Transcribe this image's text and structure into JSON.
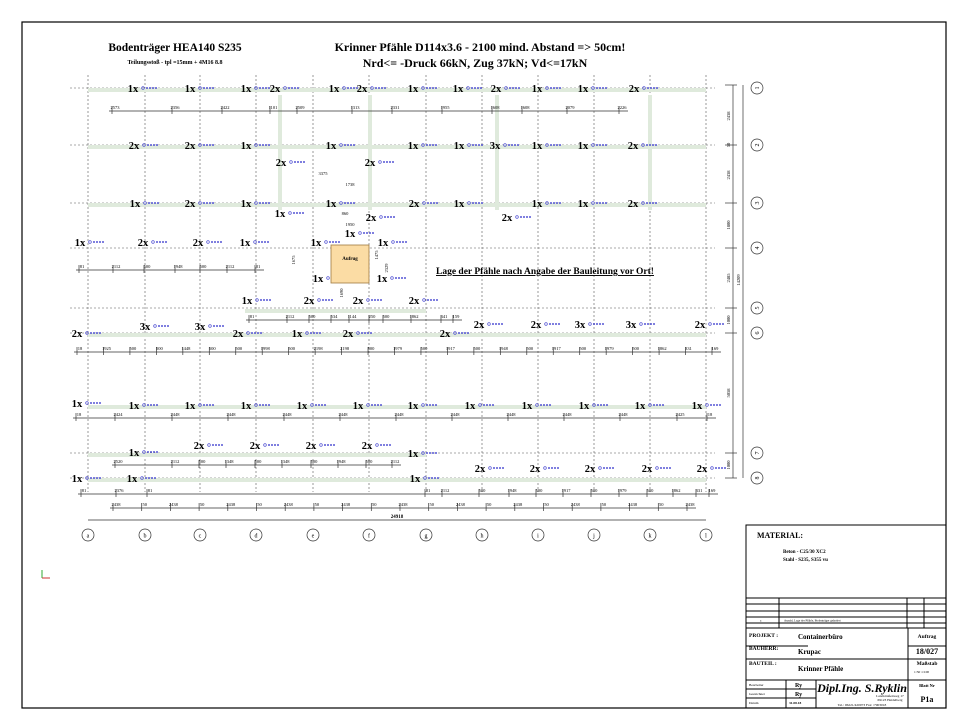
{
  "header": {
    "beam_title": "Bodenträger HEA140 S235",
    "beam_subtitle": "Teilungsstoß - tpl =15mm + 4M16 8.8",
    "pile_title": "Krinner Pfähle D114x3.6 - 2100 mind. Abstand => 50cm!",
    "pile_loads": "Nrd<= -Druck 66kN, Zug 37kN; Vd<=17kN"
  },
  "note": "Lage der Pfähle nach Angabe der Bauleitung vor Ort!",
  "box_label": "Aufrug",
  "colors": {
    "pile_label": "#3333cc",
    "box_fill": "#fbdca4",
    "beam_highlight": "#dfeadc",
    "axis_icon": "#33aa33"
  },
  "grid": {
    "columns": [
      "a",
      "b",
      "c",
      "d",
      "e",
      "f",
      "g",
      "h",
      "i",
      "j",
      "k",
      "l"
    ],
    "rows": [
      "1",
      "2",
      "3",
      "4",
      "5",
      "6",
      "7",
      "8"
    ]
  },
  "pile_markers": {
    "row1": [
      "1x",
      "1x",
      "1x",
      "2x",
      "1x",
      "2x",
      "1x",
      "1x",
      "2x",
      "1x",
      "1x",
      "2x"
    ],
    "row2": [
      "2x",
      "2x",
      "1x",
      "2x",
      "1x",
      "2x",
      "1x",
      "1x",
      "3x",
      "1x",
      "1x",
      "2x"
    ],
    "row3": [
      "1x",
      "2x",
      "1x",
      "1x",
      "1x",
      "2x",
      "2x",
      "1x",
      "2x",
      "1x",
      "1x",
      "2x"
    ],
    "row4": [
      "1x",
      "2x",
      "2x",
      "1x",
      "1x",
      "1x",
      "1x",
      "1x",
      "1x"
    ],
    "row5": [
      "1x",
      "2x",
      "2x",
      "2x"
    ],
    "row6": [
      "2x",
      "3x",
      "3x",
      "2x",
      "1x",
      "2x",
      "2x",
      "2x",
      "2x",
      "3x",
      "3x",
      "2x"
    ],
    "row7": [
      "1x",
      "1x",
      "1x",
      "1x",
      "1x",
      "1x",
      "1x",
      "1x",
      "1x",
      "1x",
      "1x",
      "1x"
    ],
    "row8a": [
      "1x",
      "2x",
      "2x",
      "2x",
      "2x",
      "1x"
    ],
    "row8b": [
      "1x",
      "1x",
      "1x",
      "2x",
      "2x",
      "2x",
      "2x",
      "2x"
    ]
  },
  "dimensions": {
    "top_row": [
      "2573",
      "2356",
      "2422",
      "1101",
      "2509",
      "1313",
      "2331",
      "1955",
      "1608",
      "1608",
      "2079",
      "2226"
    ],
    "row4": [
      "81",
      "2112",
      "500",
      "1948",
      "500",
      "2112",
      "81"
    ],
    "row5": [
      "81",
      "2112",
      "500",
      "534",
      "1144",
      "250",
      "500",
      "1862",
      "341",
      "159"
    ],
    "row6": [
      "18",
      "1925",
      "500",
      "500",
      "1448",
      "500",
      "500",
      "1998",
      "500",
      "2198",
      "2198",
      "500",
      "1979",
      "500",
      "1917",
      "500",
      "1948",
      "500",
      "1917",
      "500",
      "1979",
      "500",
      "1862",
      "331",
      "169"
    ],
    "row7": [
      "18",
      "2424",
      "2448",
      "2448",
      "2448",
      "2448",
      "2448",
      "2448",
      "2448",
      "2448",
      "2448",
      "2425",
      "18"
    ],
    "row8a": [
      "2520",
      "2112",
      "500",
      "1348",
      "500",
      "1348",
      "500",
      "1948",
      "500",
      "2112"
    ],
    "row8b": [
      "81",
      "2376",
      "81",
      "81",
      "2112",
      "500",
      "1948",
      "500",
      "1917",
      "500",
      "1979",
      "500",
      "1862",
      "331",
      "169"
    ],
    "axis_spacing": [
      "2438",
      "50",
      "2438",
      "50",
      "2438",
      "50",
      "2438",
      "50",
      "2438",
      "50",
      "2438",
      "50",
      "2438",
      "50",
      "2438",
      "50",
      "2438",
      "50",
      "2438",
      "50",
      "2438"
    ],
    "total_width": "24918",
    "box": [
      "3375",
      "1738",
      "860",
      "1950",
      "1675",
      "1475",
      "2329",
      "1690"
    ],
    "right_side": [
      "2438",
      "50",
      "2438",
      "1800",
      "2485",
      "1000",
      "5058",
      "1000"
    ],
    "total_height": "14209"
  },
  "title_block": {
    "material_heading": "MATERIAL:",
    "material_lines": [
      "Beton   - C25/30 XC2",
      "Stahl   - S235, S355 vu"
    ],
    "revision_index": "a",
    "revision_text": "Anzahl, Lage der Pfähle, Bodenträger geändert",
    "projekt_label": "PROJEKT :",
    "projekt_value": "Containerbüro",
    "auftrag_label": "Auftrag",
    "auftrag_value": "18/027",
    "bauherr_label": "BAUHERR:",
    "bauherr_value": "Krupac",
    "bauteil_label": "BAUTEIL :",
    "bauteil_value": "Krinner Pfähle",
    "massstab_label": "Maßstab",
    "massstab_value": "1:50  1:100",
    "bearbeiter_label": "Bearbeiter",
    "bearbeiter_value": "Ry",
    "gezeichnet_label": "Gezeichnet",
    "gezeichnet_value": "Ry",
    "datum_label": "Datum",
    "datum_value": "31.08.18",
    "office_name": "Dipl.Ing. S.Ryklin",
    "office_address_1": "Landstraßenweg 17",
    "office_address_2": "69123 Heidelberg",
    "office_contact": "Tel.: 06221/420073  Fax: /7903018",
    "blatt_label": "Blatt Nr",
    "blatt_value": "P1a"
  }
}
